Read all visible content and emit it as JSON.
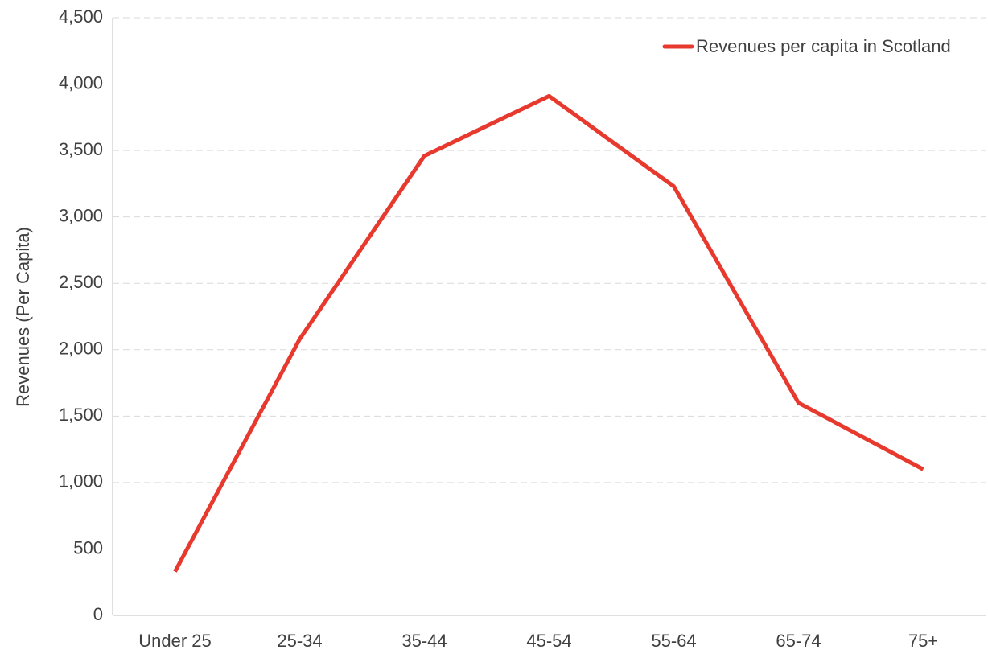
{
  "chart_data": {
    "type": "line",
    "y_label": "Revenues (Per Capita)",
    "categories": [
      "Under 25",
      "25-34",
      "35-44",
      "45-54",
      "55-64",
      "65-74",
      "75+"
    ],
    "series": [
      {
        "name": "Revenues per capita in Scotland",
        "color": "#e8392e",
        "values": [
          330,
          2080,
          3460,
          3910,
          3230,
          1600,
          1100
        ]
      }
    ],
    "ylim": [
      0,
      4500
    ],
    "yticks": [
      0,
      500,
      {
        "value": 1000,
        "label": "1,000"
      },
      {
        "value": 1500,
        "label": "1,500"
      },
      {
        "value": 2000,
        "label": "2,000"
      },
      {
        "value": 2500,
        "label": "2,500"
      },
      {
        "value": 3000,
        "label": "3,000"
      },
      {
        "value": 3500,
        "label": "3,500"
      },
      {
        "value": 4000,
        "label": "4,000"
      },
      {
        "value": 4500,
        "label": "4,500"
      }
    ],
    "grid": true
  }
}
